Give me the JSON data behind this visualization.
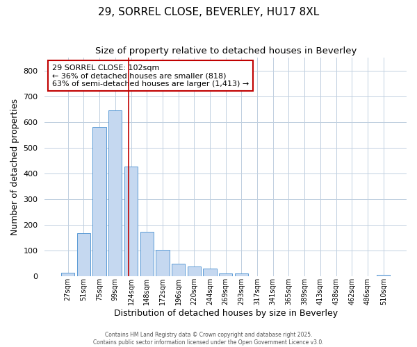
{
  "title_line1": "29, SORREL CLOSE, BEVERLEY, HU17 8XL",
  "title_line2": "Size of property relative to detached houses in Beverley",
  "xlabel": "Distribution of detached houses by size in Beverley",
  "ylabel": "Number of detached properties",
  "all_cats": [
    "27sqm",
    "51sqm",
    "75sqm",
    "99sqm",
    "124sqm",
    "148sqm",
    "172sqm",
    "196sqm",
    "220sqm",
    "244sqm",
    "269sqm",
    "293sqm",
    "317sqm",
    "341sqm",
    "365sqm",
    "389sqm",
    "413sqm",
    "438sqm",
    "462sqm",
    "486sqm",
    "510sqm"
  ],
  "all_vals": [
    15,
    168,
    580,
    645,
    428,
    172,
    103,
    50,
    38,
    30,
    12,
    10,
    0,
    0,
    0,
    0,
    0,
    0,
    0,
    0,
    5
  ],
  "bar_color": "#c5d8f0",
  "bar_edge_color": "#5b9bd5",
  "grid_color": "#c0cfe0",
  "background_color": "#ffffff",
  "vline_color": "#c00000",
  "vline_xindex": 3.85,
  "annotation_text": "29 SORREL CLOSE: 102sqm\n← 36% of detached houses are smaller (818)\n63% of semi-detached houses are larger (1,413) →",
  "annotation_box_color": "white",
  "annotation_box_edge": "#c00000",
  "ylim": [
    0,
    850
  ],
  "yticks": [
    0,
    100,
    200,
    300,
    400,
    500,
    600,
    700,
    800
  ],
  "footer_line1": "Contains HM Land Registry data © Crown copyright and database right 2025.",
  "footer_line2": "Contains public sector information licensed under the Open Government Licence v3.0."
}
